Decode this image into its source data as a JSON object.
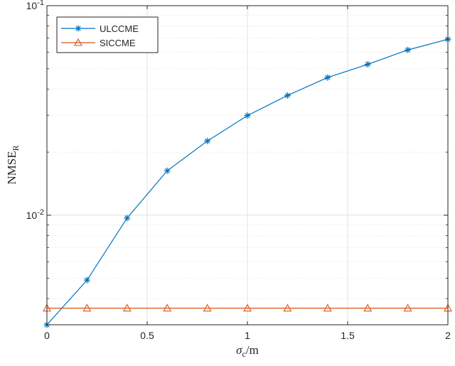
{
  "chart_data": {
    "type": "line",
    "title": "",
    "xlabel": "σ_c/m",
    "xlabel_main": "σ",
    "xlabel_sub": "c",
    "xlabel_tail": "/m",
    "ylabel": "NMSE_R",
    "ylabel_main": "NMSE",
    "ylabel_sub": "R",
    "xlim": [
      0,
      2
    ],
    "ylim": [
      0.003,
      0.1
    ],
    "yscale": "log",
    "grid": true,
    "legend_position": "top-left",
    "x_ticks": [
      {
        "value": 0,
        "label": "0"
      },
      {
        "value": 0.5,
        "label": "0.5"
      },
      {
        "value": 1,
        "label": "1"
      },
      {
        "value": 1.5,
        "label": "1.5"
      },
      {
        "value": 2,
        "label": "2"
      }
    ],
    "y_ticks": [
      {
        "value": 0.01,
        "base": "10",
        "exp": "-2"
      },
      {
        "value": 0.1,
        "base": "10",
        "exp": "-1"
      }
    ],
    "series": [
      {
        "name": "ULCCME",
        "color": "#0072BD",
        "marker": "asterisk",
        "x": [
          0,
          0.2,
          0.4,
          0.6,
          0.8,
          1.0,
          1.2,
          1.4,
          1.6,
          1.8,
          2.0
        ],
        "values": [
          0.003,
          0.0049,
          0.0097,
          0.0163,
          0.0226,
          0.0299,
          0.0373,
          0.0454,
          0.0525,
          0.0615,
          0.0691
        ]
      },
      {
        "name": "SICCME",
        "color": "#D95319",
        "marker": "triangle",
        "x": [
          0,
          0.2,
          0.4,
          0.6,
          0.8,
          1.0,
          1.2,
          1.4,
          1.6,
          1.8,
          2.0
        ],
        "values": [
          0.0036,
          0.0036,
          0.0036,
          0.0036,
          0.0036,
          0.0036,
          0.0036,
          0.0036,
          0.0036,
          0.0036,
          0.0036
        ]
      }
    ]
  }
}
